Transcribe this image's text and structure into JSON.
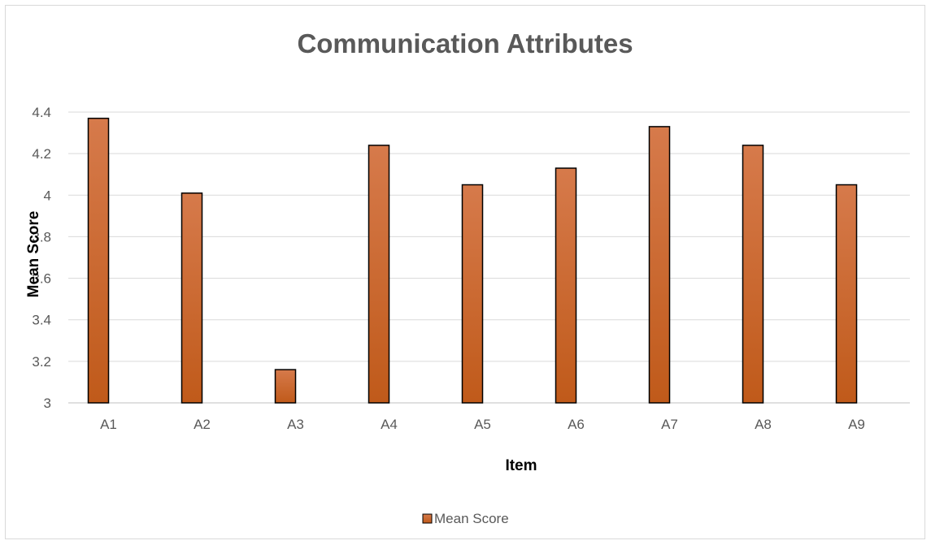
{
  "chart_data": {
    "type": "bar",
    "title": "Communication Attributes",
    "xlabel": "Item",
    "ylabel": "Mean Score",
    "categories": [
      "A1",
      "A2",
      "A3",
      "A4",
      "A5",
      "A6",
      "A7",
      "A8",
      "A9"
    ],
    "series": [
      {
        "name": "Mean Score",
        "values": [
          4.37,
          4.01,
          3.16,
          4.24,
          4.05,
          4.13,
          4.33,
          4.24,
          4.05
        ]
      }
    ],
    "ylim": [
      3,
      4.4
    ],
    "yticks": [
      "3",
      "3.2",
      "3.4",
      "3.6",
      "3.8",
      "4",
      "4.2",
      "4.4"
    ],
    "grid": true,
    "legend_position": "bottom",
    "colors": {
      "bar_fill_top": "#d67a4b",
      "bar_fill_bottom": "#c05a1a",
      "bar_stroke": "#000000",
      "grid": "#d9d9d9",
      "axis": "#bfbfbf",
      "text": "#595959"
    }
  }
}
